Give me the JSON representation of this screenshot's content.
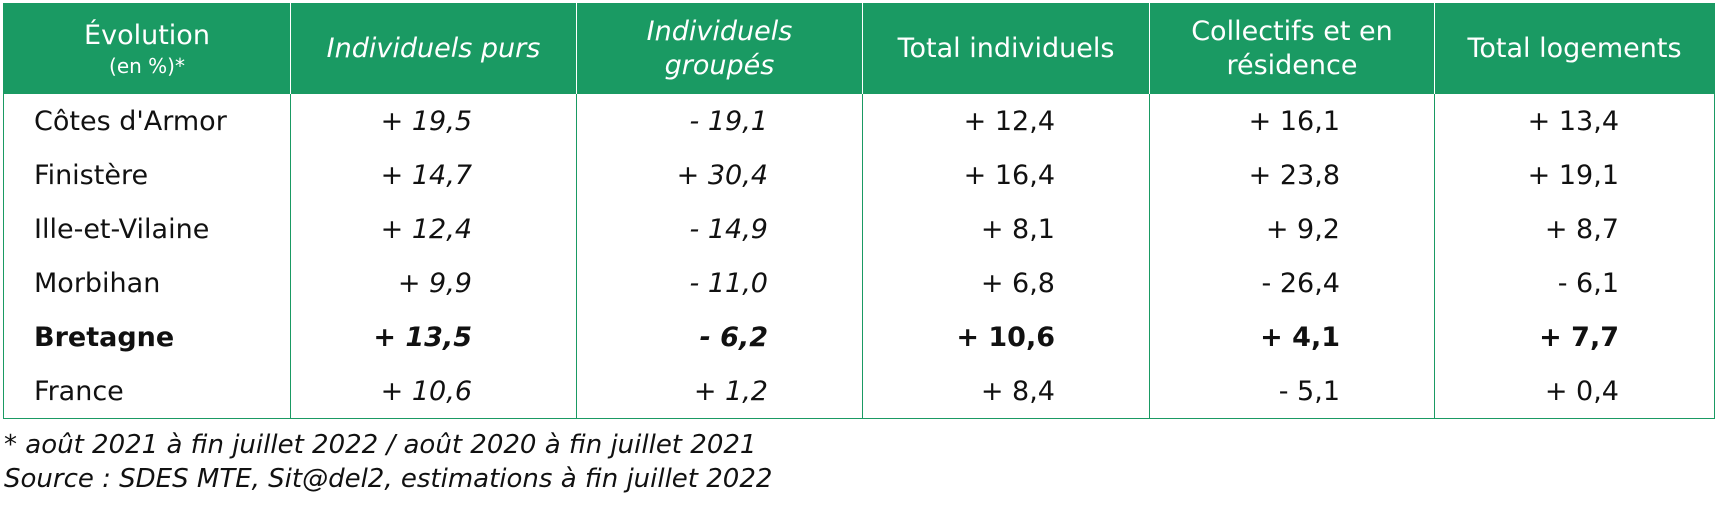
{
  "table": {
    "headers": [
      {
        "line1": "Évolution",
        "line2": "(en %)*"
      },
      {
        "line1": "Individuels purs",
        "line2": ""
      },
      {
        "line1": "Individuels",
        "line2": "groupés"
      },
      {
        "line1": "Total individuels",
        "line2": ""
      },
      {
        "line1": "Collectifs et en",
        "line2": "résidence"
      },
      {
        "line1": "Total logements",
        "line2": ""
      }
    ],
    "rows": [
      {
        "label": "Côtes d'Armor",
        "individuels_purs": "+ 19,5",
        "individuels_groupes": "- 19,1",
        "total_individuels": "+ 12,4",
        "collectifs_residence": "+ 16,1",
        "total_logements": "+ 13,4"
      },
      {
        "label": "Finistère",
        "individuels_purs": "+ 14,7",
        "individuels_groupes": "+ 30,4",
        "total_individuels": "+ 16,4",
        "collectifs_residence": "+ 23,8",
        "total_logements": "+ 19,1"
      },
      {
        "label": "Ille-et-Vilaine",
        "individuels_purs": "+ 12,4",
        "individuels_groupes": "- 14,9",
        "total_individuels": "+ 8,1",
        "collectifs_residence": "+ 9,2",
        "total_logements": "+ 8,7"
      },
      {
        "label": "Morbihan",
        "individuels_purs": "+ 9,9",
        "individuels_groupes": "- 11,0",
        "total_individuels": "+ 6,8",
        "collectifs_residence": "- 26,4",
        "total_logements": "- 6,1"
      },
      {
        "label": "Bretagne",
        "individuels_purs": "+ 13,5",
        "individuels_groupes": "- 6,2",
        "total_individuels": "+ 10,6",
        "collectifs_residence": "+ 4,1",
        "total_logements": "+ 7,7"
      },
      {
        "label": "France",
        "individuels_purs": "+ 10,6",
        "individuels_groupes": "+ 1,2",
        "total_individuels": "+ 8,4",
        "collectifs_residence": "- 5,1",
        "total_logements": "+ 0,4"
      }
    ]
  },
  "notes": {
    "period": "* août 2021 à fin juillet 2022 / août 2020 à fin juillet 2021",
    "source": "Source : SDES MTE, Sit@del2, estimations à fin juillet 2022"
  },
  "colors": {
    "header_background": "#1a9a63",
    "header_text": "#ffffff",
    "border": "#1a9a63"
  }
}
